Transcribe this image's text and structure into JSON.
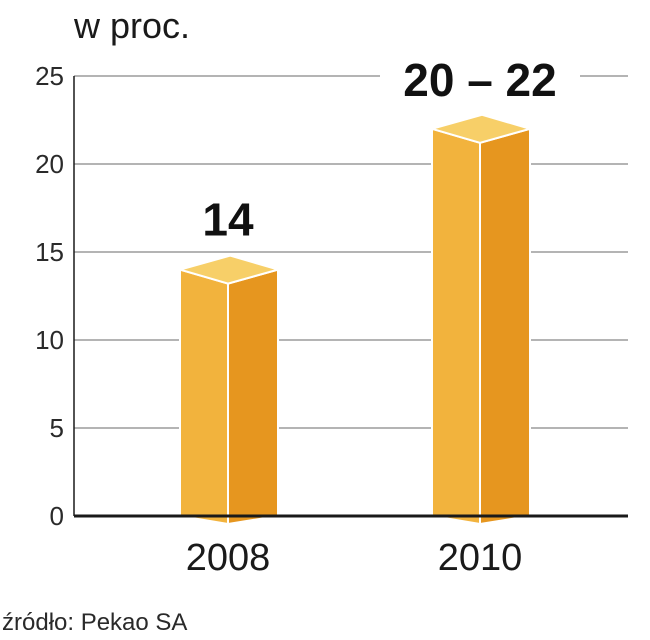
{
  "chart_data": {
    "type": "bar",
    "title": "",
    "unit_label": "w proc.",
    "categories": [
      "2008",
      "2010"
    ],
    "values": [
      14,
      22
    ],
    "value_ranges": [
      [
        14,
        14
      ],
      [
        20,
        22
      ]
    ],
    "data_labels": [
      "14",
      "20 – 22"
    ],
    "y_ticks": [
      "0",
      "5",
      "10",
      "15",
      "20",
      "25"
    ],
    "ylim": [
      0,
      25
    ],
    "grid": true,
    "style": "3d-bar",
    "colors": {
      "bar_front": "#f2b33d",
      "bar_side": "#e6961f",
      "bar_top": "#f7cf68",
      "bar_edge": "#ffffff",
      "grid": "#9b9b9b",
      "axis": "#1a1a1a"
    },
    "source": "źródło: Pekao SA"
  }
}
